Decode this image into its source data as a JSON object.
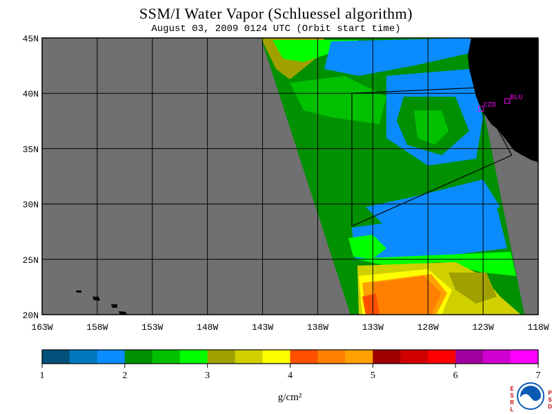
{
  "title": "SSM/I Water Vapor (Schluessel algorithm)",
  "subtitle": "August 03, 2009  0124 UTC  (Orbit start time)",
  "colors": {
    "ocean_no_data": "#707070",
    "land": "#000000",
    "grid": "#000000",
    "station": "#ff00ff"
  },
  "map": {
    "lon_range": [
      -163,
      -118
    ],
    "lat_range": [
      20,
      45
    ],
    "lat_ticks": [
      {
        "lat": 45,
        "label": "45N"
      },
      {
        "lat": 40,
        "label": "40N"
      },
      {
        "lat": 35,
        "label": "35N"
      },
      {
        "lat": 30,
        "label": "30N"
      },
      {
        "lat": 25,
        "label": "25N"
      },
      {
        "lat": 20,
        "label": "20N"
      }
    ],
    "lon_ticks": [
      {
        "lon": -163,
        "label": "163W"
      },
      {
        "lon": -158,
        "label": "158W"
      },
      {
        "lon": -153,
        "label": "153W"
      },
      {
        "lon": -148,
        "label": "148W"
      },
      {
        "lon": -143,
        "label": "143W"
      },
      {
        "lon": -138,
        "label": "138W"
      },
      {
        "lon": -133,
        "label": "133W"
      },
      {
        "lon": -128,
        "label": "128W"
      },
      {
        "lon": -123,
        "label": "123W"
      },
      {
        "lon": -118,
        "label": "118W"
      }
    ],
    "stations": [
      {
        "id": "CZD",
        "lon": -123.2,
        "lat": 38.6
      },
      {
        "id": "BLU",
        "lon": -120.8,
        "lat": 39.3
      }
    ],
    "region_outline": [
      {
        "lon": -134.9,
        "lat": 40.0
      },
      {
        "lon": -123.7,
        "lat": 40.5
      },
      {
        "lon": -120.4,
        "lat": 34.4
      },
      {
        "lon": -134.9,
        "lat": 28.0
      }
    ]
  },
  "colorbar": {
    "units": "g/cm²",
    "labels": [
      "1",
      "2",
      "3",
      "4",
      "5",
      "6",
      "7"
    ],
    "colors": [
      "#00507a",
      "#0078c0",
      "#0a8cff",
      "#009000",
      "#00c000",
      "#00ff00",
      "#a0a000",
      "#d0d000",
      "#ffff00",
      "#ff5000",
      "#ff8000",
      "#ffa000",
      "#a00000",
      "#d00000",
      "#ff0000",
      "#a000a0",
      "#d000d0",
      "#ff00ff"
    ]
  },
  "logo": {
    "left_letters": [
      "E",
      "S",
      "R",
      "L"
    ],
    "right_letters": [
      "P",
      "S",
      "D"
    ]
  }
}
